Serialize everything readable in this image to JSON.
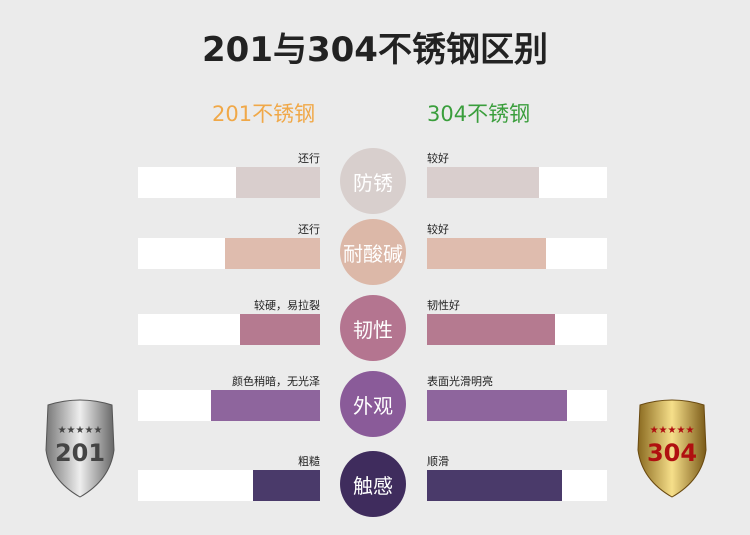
{
  "title": "201与304不锈钢区别",
  "columns": {
    "left": "201不锈钢",
    "right": "304不锈钢"
  },
  "rows": [
    {
      "name": "防锈",
      "left_label": "还行",
      "right_label": "较好",
      "left_level": 0.46,
      "right_level": 0.62,
      "color": "#d9cecd",
      "circle_color": "#d8cfcd"
    },
    {
      "name": "耐酸碱",
      "left_label": "还行",
      "right_label": "较好",
      "left_level": 0.52,
      "right_level": 0.66,
      "color": "#dfbcae",
      "circle_color": "#dcb8a8"
    },
    {
      "name": "韧性",
      "left_label": "较硬，易拉裂",
      "right_label": "韧性好",
      "left_level": 0.44,
      "right_level": 0.71,
      "color": "#b57a90",
      "circle_color": "#b47590"
    },
    {
      "name": "外观",
      "left_label": "颜色稍暗，无光泽",
      "right_label": "表面光滑明亮",
      "left_level": 0.6,
      "right_level": 0.78,
      "color": "#8e659d",
      "circle_color": "#8a5b99"
    },
    {
      "name": "触感",
      "left_label": "粗糙",
      "right_label": "顺滑",
      "left_level": 0.37,
      "right_level": 0.75,
      "color": "#4a3a6a",
      "circle_color": "#3f2c5d"
    }
  ],
  "badges": {
    "left": "201",
    "right": "304"
  }
}
